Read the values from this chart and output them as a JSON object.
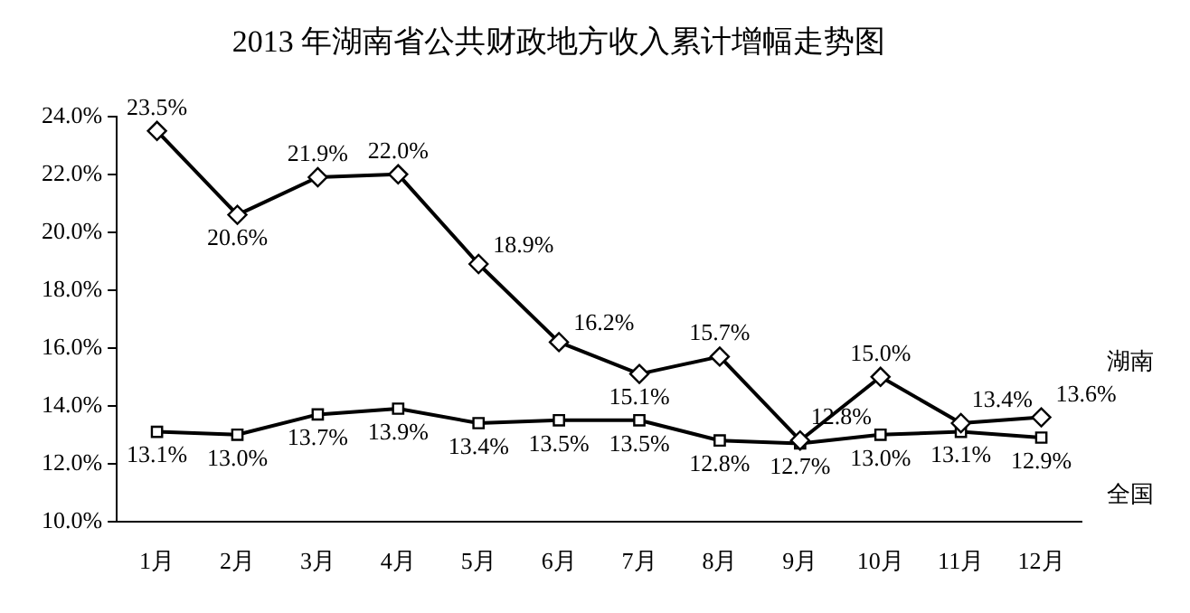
{
  "chart_data": {
    "type": "line",
    "title": "2013 年湖南省公共财政地方收入累计增幅走势图",
    "categories": [
      "1月",
      "2月",
      "3月",
      "4月",
      "5月",
      "6月",
      "7月",
      "8月",
      "9月",
      "10月",
      "11月",
      "12月"
    ],
    "series": [
      {
        "name": "湖南",
        "color": "#000000",
        "marker": "diamond",
        "values": [
          23.5,
          20.6,
          21.9,
          22.0,
          18.9,
          16.2,
          15.1,
          15.7,
          12.8,
          15.0,
          13.4,
          13.6
        ],
        "value_labels": [
          "23.5%",
          "20.6%",
          "21.9%",
          "22.0%",
          "18.9%",
          "16.2%",
          "15.1%",
          "15.7%",
          "12.8%",
          "15.0%",
          "13.4%",
          "13.6%"
        ]
      },
      {
        "name": "全国",
        "color": "#000000",
        "marker": "square",
        "values": [
          13.1,
          13.0,
          13.7,
          13.9,
          13.4,
          13.5,
          13.5,
          12.8,
          12.7,
          13.0,
          13.1,
          12.9
        ],
        "value_labels": [
          "13.1%",
          "13.0%",
          "13.7%",
          "13.9%",
          "13.4%",
          "13.5%",
          "13.5%",
          "12.8%",
          "12.7%",
          "13.0%",
          "13.1%",
          "12.9%"
        ]
      }
    ],
    "ylim": [
      10,
      24
    ],
    "yticks": [
      {
        "value": 10,
        "label": "10.0%"
      },
      {
        "value": 12,
        "label": "12.0%"
      },
      {
        "value": 14,
        "label": "14.0%"
      },
      {
        "value": 16,
        "label": "16.0%"
      },
      {
        "value": 18,
        "label": "18.0%"
      },
      {
        "value": 20,
        "label": "20.0%"
      },
      {
        "value": 22,
        "label": "22.0%"
      },
      {
        "value": 24,
        "label": "24.0%"
      }
    ],
    "grid": false,
    "legend": false,
    "line_style": "solid"
  }
}
